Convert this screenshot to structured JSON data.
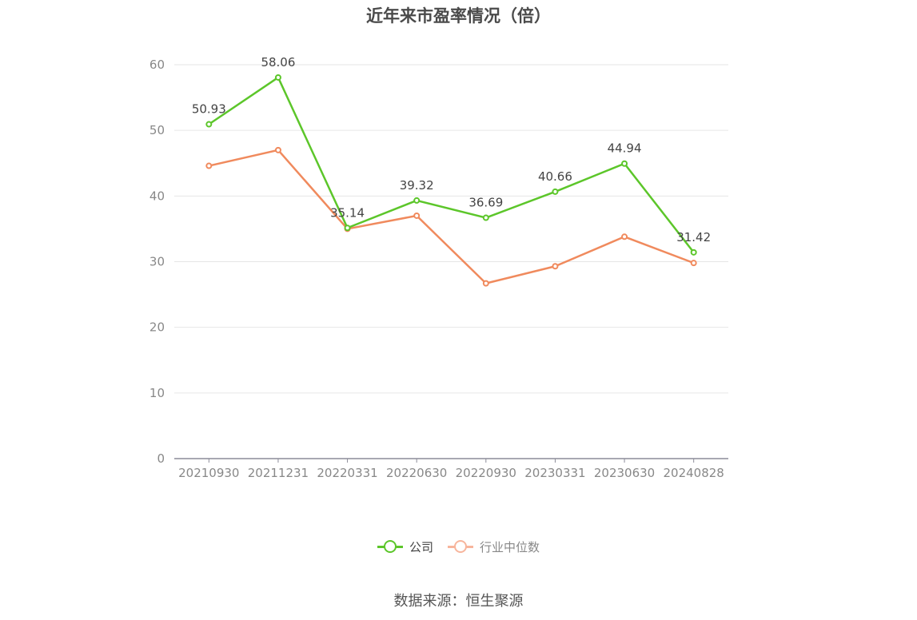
{
  "title": "近年来市盈率情况（倍）",
  "source": "数据来源：恒生聚源",
  "colors": {
    "company": "#5cc62a",
    "industry": "#f08a5d",
    "industry_legend": "#f7b59c"
  },
  "legend": [
    {
      "label": "公司",
      "series": "company"
    },
    {
      "label": "行业中位数",
      "series": "industry"
    }
  ],
  "chart_data": {
    "type": "line",
    "x": [
      "20210930",
      "20211231",
      "20220331",
      "20220630",
      "20220930",
      "20230331",
      "20230630",
      "20240828"
    ],
    "ylim": [
      0,
      60
    ],
    "yticks": [
      0,
      10,
      20,
      30,
      40,
      50,
      60
    ],
    "grid": true,
    "legend_position": "bottom",
    "series": [
      {
        "name": "公司",
        "values": [
          50.93,
          58.06,
          35.14,
          39.32,
          36.69,
          40.66,
          44.94,
          31.42
        ],
        "labels": true
      },
      {
        "name": "行业中位数",
        "values": [
          44.6,
          47.0,
          35.0,
          37.0,
          26.7,
          29.3,
          33.8,
          29.8
        ],
        "labels": false
      }
    ]
  }
}
